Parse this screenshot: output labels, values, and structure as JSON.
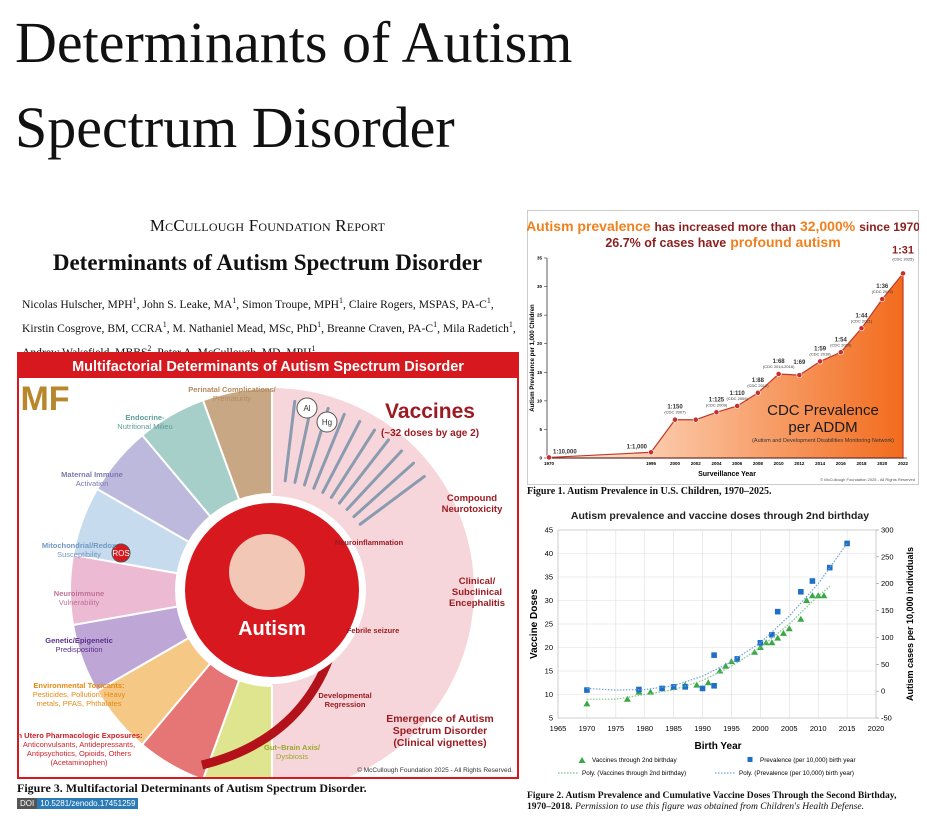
{
  "title": "Determinants of Autism Spectrum Disorder",
  "report": {
    "masthead": "McCullough Foundation Report",
    "title": "Determinants of Autism Spectrum Disorder",
    "authors": [
      {
        "name": "Nicolas Hulscher, MPH",
        "aff": "1"
      },
      {
        "name": "John S. Leake, MA",
        "aff": "1"
      },
      {
        "name": "Simon Troupe, MPH",
        "aff": "1"
      },
      {
        "name": "Claire Rogers, MSPAS, PA-C",
        "aff": "1"
      },
      {
        "name": "Kirstin Cosgrove, BM, CCRA",
        "aff": "1"
      },
      {
        "name": "M. Nathaniel Mead, MSc, PhD",
        "aff": "1"
      },
      {
        "name": "Breanne Craven, PA-C",
        "aff": "1"
      },
      {
        "name": "Mila Radetich",
        "aff": "1"
      },
      {
        "name": "Andrew Wakefield, MBBS",
        "aff": "2"
      },
      {
        "name": "Peter A. McCullough, MD, MPH",
        "aff": "1"
      }
    ]
  },
  "infographic": {
    "header": "Multifactorial Determinants of Autism Spectrum Disorder",
    "logo": "MF",
    "center": "Autism",
    "vaccines": "Vaccines",
    "vaccines_sub": "(~32 doses by age 2)",
    "icons": [
      "Al",
      "Hg",
      "ROS"
    ],
    "factors": [
      {
        "lines": [
          "Perinatal Complications/",
          "Prematurity"
        ]
      },
      {
        "lines": [
          "Endocrine-",
          "Nutritional Milieu"
        ]
      },
      {
        "lines": [
          "Maternal Immune",
          "Activation"
        ]
      },
      {
        "lines": [
          "Mitochondrial/Redox",
          "Susceptibility"
        ]
      },
      {
        "lines": [
          "Neuroimmune",
          "Vulnerability"
        ]
      },
      {
        "lines": [
          "Genetic/Epigenetic",
          "Predisposition"
        ]
      },
      {
        "lines": [
          "Environmental Toxicants:",
          "Pesticides, Pollution, Heavy",
          "metals, PFAS, Phthalates"
        ]
      },
      {
        "lines": [
          "In Utero Pharmacologic Exposures:",
          "Anticonvulsants, Antidepressants,",
          "Antipsychotics, Opioids, Others",
          "(Acetaminophen)"
        ]
      },
      {
        "lines": [
          "Gut–Brain Axis/",
          "Dysbiosis"
        ]
      }
    ],
    "stages": [
      {
        "lines": [
          "Compound",
          "Neurotoxicity"
        ]
      },
      {
        "lines": [
          "Clinical/",
          "Subclinical",
          "Encephalitis"
        ]
      },
      {
        "lines": [
          "Neuroinflammation"
        ]
      },
      {
        "lines": [
          "Febrile seizure"
        ]
      },
      {
        "lines": [
          "Developmental",
          "Regression"
        ]
      },
      {
        "lines": [
          "Emergence of Autism",
          "Spectrum Disorder",
          "(Clinical vignettes)"
        ]
      }
    ],
    "copyright": "© McCullough Foundation 2025 - All Rights Reserved.",
    "caption": "Figure 3. Multifactorial Determinants of Autism Spectrum Disorder.",
    "doi_label": "DOI",
    "doi": "10.5281/zenodo.17451259"
  },
  "figure1": {
    "headline": [
      "Autism prevalence",
      "has increased more than",
      "32,000%",
      "since 1970"
    ],
    "subheadline": [
      "26.7% of cases have",
      "profound autism"
    ],
    "chart_data": {
      "type": "area",
      "categories": [
        "1970",
        "1995",
        "2000",
        "2002",
        "2004",
        "2006",
        "2008",
        "2010",
        "2012",
        "2014",
        "2016",
        "2018",
        "2020",
        "2022"
      ],
      "values": [
        0.1,
        1,
        6.7,
        6.7,
        8,
        9.1,
        11.4,
        14.7,
        14.5,
        16.9,
        18.5,
        22.7,
        27.8,
        32.3
      ],
      "point_labels": [
        "1:10,000",
        "1:1,000",
        "1:150",
        null,
        "1:125",
        "1:110",
        "1:88",
        "1:68",
        "1:69",
        "1:59",
        "1:54",
        "1:44",
        "1:36",
        "1:31"
      ],
      "point_notes": [
        null,
        null,
        "(CDC 2007)",
        null,
        "(CDC 2009)",
        "(CDC 2009)",
        "(CDC 2012)",
        "(CDC 2014-2016)",
        null,
        "(CDC 2018)",
        "(CDC 2020)",
        "(CDC 2021)",
        "(CDC 2023)",
        "(CDC 2025)"
      ],
      "color": "#f26b1d",
      "ylim": [
        0,
        35
      ],
      "yticks": [
        0,
        5,
        10,
        15,
        20,
        25,
        30,
        35
      ],
      "y_label": "Autism Prevalence per 1,000 Children",
      "x_label": "Surveillance Year",
      "annotation": [
        "CDC Prevalence",
        "per ADDM"
      ],
      "annotation_note": "(Autism and Development Disabilities Monitoring Network)",
      "copyright": "© McCullough Foundation 2025 - All Rights Reserved"
    },
    "caption": "Figure 1. Autism Prevalence in U.S. Children, 1970–2025."
  },
  "figure2": {
    "chart_data": {
      "type": "scatter",
      "title": "Autism prevalence and vaccine doses through 2nd birthday",
      "x_label": "Birth Year",
      "y_label": "Vaccine Doses",
      "y2_label": "Autism cases per 10,000 individuals",
      "xlim": [
        1965,
        2020
      ],
      "xticks": [
        1965,
        1970,
        1975,
        1980,
        1985,
        1990,
        1995,
        2000,
        2005,
        2010,
        2015,
        2020
      ],
      "ylim": [
        5,
        45
      ],
      "yticks": [
        5,
        10,
        15,
        20,
        25,
        30,
        35,
        40,
        45
      ],
      "y2lim": [
        -50,
        300
      ],
      "y2ticks": [
        -50,
        0,
        50,
        100,
        150,
        200,
        250,
        300
      ],
      "grid": true,
      "series": [
        {
          "name": "Vaccines through 2nd birthday",
          "color": "#3aa845",
          "marker": "triangle",
          "x": [
            1970,
            1977,
            1979,
            1981,
            1985,
            1987,
            1989,
            1991,
            1993,
            1994,
            1995,
            1996,
            1999,
            2000,
            2001,
            2002,
            2003,
            2004,
            2005,
            2007,
            2008,
            2009,
            2010,
            2011
          ],
          "values": [
            8,
            9,
            10.5,
            10.5,
            11.5,
            12,
            12,
            12.5,
            15,
            16,
            17,
            17.5,
            19,
            20,
            21,
            21,
            22,
            23,
            24,
            26,
            30,
            31,
            31,
            31
          ]
        },
        {
          "name": "Prevalence (per 10,000) birth year",
          "color": "#1f6fc9",
          "marker": "square",
          "axis": "y2",
          "x": [
            1970,
            1979,
            1983,
            1985,
            1987,
            1990,
            1992,
            1992,
            1996,
            2000,
            2002,
            2003,
            2007,
            2009,
            2012,
            2015
          ],
          "values": [
            2,
            3,
            5,
            8,
            8,
            5,
            67,
            10,
            60,
            90,
            105,
            148,
            185,
            205,
            230,
            275
          ]
        },
        {
          "name": "Poly. (Vaccines through 2nd birthday)",
          "color": "#7cc48a",
          "marker": "line",
          "x": [
            1970,
            1975,
            1980,
            1985,
            1990,
            1995,
            2000,
            2005,
            2010,
            2012
          ],
          "values": [
            9,
            9,
            10,
            11,
            13,
            16,
            20,
            25,
            31,
            33
          ]
        },
        {
          "name": "Poly. (Prevalence (per 10,000) birth year)",
          "color": "#6fa3dc",
          "marker": "line",
          "axis": "y2",
          "x": [
            1970,
            1975,
            1980,
            1985,
            1990,
            1995,
            2000,
            2005,
            2010,
            2015
          ],
          "values": [
            5,
            2,
            3,
            10,
            28,
            55,
            90,
            140,
            200,
            275
          ]
        }
      ]
    },
    "caption": "Figure 2. Autism Prevalence and Cumulative Vaccine Doses Through the Second Birthday, 1970–2018.",
    "caption_note": "Permission to use this figure was obtained from Children's Health Defense."
  }
}
